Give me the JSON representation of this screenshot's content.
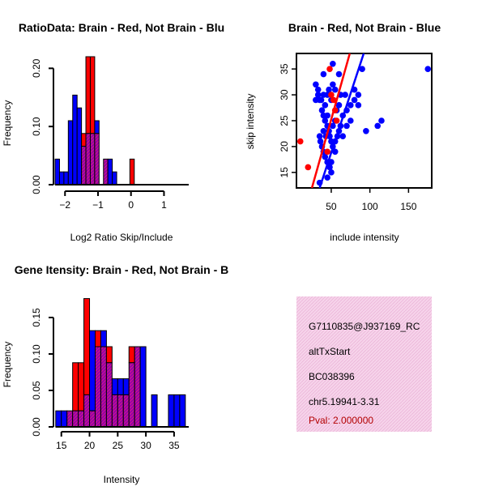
{
  "colors": {
    "red": "#ff0000",
    "blue": "#0000ff",
    "overlap": "#9400a8",
    "info_bg": "#f6d3ea",
    "pval_text": "#b30000"
  },
  "chart_data": [
    {
      "id": "ratio_hist",
      "type": "bar",
      "title": "RatioData: Brain - Red, Not Brain - Blu",
      "xlabel": "Log2 Ratio Skip/Include",
      "ylabel": "Frequency",
      "xlim": [
        -2.35,
        1.75
      ],
      "ylim": [
        0,
        0.22
      ],
      "xticks": [
        -2,
        -1,
        0,
        1
      ],
      "xtick_labels": [
        "−2",
        "−1",
        "0",
        "1"
      ],
      "yticks": [
        0.0,
        0.1,
        0.2
      ],
      "ytick_labels": [
        "0.00",
        "0.10",
        "0.20"
      ],
      "bin_start": -2.3,
      "bin_width": 0.1333,
      "series": [
        {
          "name": "Not Brain",
          "color": "blue",
          "values": [
            0.044,
            0.022,
            0.022,
            0.11,
            0.154,
            0.132,
            0.066,
            0.088,
            0.088,
            0.11,
            0.0,
            0.044,
            0.044,
            0.022,
            0,
            0,
            0,
            0,
            0,
            0,
            0,
            0,
            0,
            0,
            0,
            0,
            0,
            0,
            0,
            0
          ]
        },
        {
          "name": "Brain",
          "color": "red",
          "values": [
            0,
            0,
            0,
            0,
            0,
            0,
            0.088,
            0.22,
            0.22,
            0.088,
            0,
            0.044,
            0,
            0,
            0,
            0,
            0,
            0.044,
            0,
            0,
            0,
            0,
            0,
            0,
            0,
            0,
            0,
            0,
            0,
            0
          ]
        }
      ]
    },
    {
      "id": "scatter",
      "type": "scatter",
      "title": "Brain - Red, Not Brain - Blue",
      "xlabel": "include intensity",
      "ylabel": "skip intensity",
      "xlim": [
        5,
        180
      ],
      "ylim": [
        12,
        38
      ],
      "xticks": [
        50,
        100,
        150
      ],
      "xtick_labels": [
        "50",
        "100",
        "150"
      ],
      "yticks": [
        15,
        20,
        25,
        30,
        35
      ],
      "ytick_labels": [
        "15",
        "20",
        "25",
        "30",
        "35"
      ],
      "series": [
        {
          "name": "Not Brain",
          "color": "blue",
          "points": [
            [
              30,
              29
            ],
            [
              35,
              29
            ],
            [
              33,
              30
            ],
            [
              37,
              29
            ],
            [
              40,
              30
            ],
            [
              42,
              28
            ],
            [
              45,
              30
            ],
            [
              47,
              31
            ],
            [
              50,
              29
            ],
            [
              52,
              32
            ],
            [
              55,
              31
            ],
            [
              38,
              27
            ],
            [
              40,
              26
            ],
            [
              42,
              25
            ],
            [
              45,
              24
            ],
            [
              47,
              23
            ],
            [
              48,
              22
            ],
            [
              50,
              21
            ],
            [
              52,
              20
            ],
            [
              55,
              19
            ],
            [
              58,
              22
            ],
            [
              60,
              23
            ],
            [
              62,
              24
            ],
            [
              65,
              26
            ],
            [
              70,
              27
            ],
            [
              75,
              28
            ],
            [
              80,
              29
            ],
            [
              85,
              30
            ],
            [
              90,
              35
            ],
            [
              95,
              23
            ],
            [
              110,
              24
            ],
            [
              115,
              25
            ],
            [
              175,
              35
            ],
            [
              35,
              22
            ],
            [
              36,
              21
            ],
            [
              38,
              20
            ],
            [
              40,
              19
            ],
            [
              42,
              18
            ],
            [
              45,
              17
            ],
            [
              48,
              16
            ],
            [
              50,
              15
            ],
            [
              40,
              23
            ],
            [
              43,
              22
            ],
            [
              55,
              25
            ],
            [
              57,
              27
            ],
            [
              60,
              28
            ],
            [
              62,
              30
            ],
            [
              30,
              32
            ],
            [
              33,
              31
            ],
            [
              45,
              26
            ],
            [
              52,
              24
            ],
            [
              35,
              13
            ],
            [
              45,
              14
            ],
            [
              50,
              17
            ],
            [
              55,
              21
            ],
            [
              65,
              22
            ],
            [
              70,
              24
            ],
            [
              75,
              25
            ],
            [
              80,
              31
            ],
            [
              85,
              28
            ],
            [
              52,
              36
            ],
            [
              60,
              34
            ],
            [
              68,
              30
            ],
            [
              40,
              34
            ]
          ]
        },
        {
          "name": "Brain",
          "color": "red",
          "points": [
            [
              10,
              21
            ],
            [
              20,
              16
            ],
            [
              45,
              19
            ],
            [
              48,
              35
            ],
            [
              50,
              30
            ],
            [
              53,
              29
            ],
            [
              55,
              27
            ],
            [
              57,
              25
            ]
          ]
        }
      ],
      "fit_lines": [
        {
          "name": "Not Brain fit",
          "color": "blue",
          "x": [
            35,
            92
          ],
          "y": [
            12,
            38
          ]
        },
        {
          "name": "Brain fit",
          "color": "red",
          "x": [
            25,
            74
          ],
          "y": [
            12,
            38
          ]
        }
      ]
    },
    {
      "id": "intensity_hist",
      "type": "bar",
      "title": "Gene Itensity: Brain - Red, Not Brain - B",
      "xlabel": "Intensity",
      "ylabel": "Frequency",
      "xlim": [
        13.6,
        37.6
      ],
      "ylim": [
        0,
        0.18
      ],
      "xticks": [
        15,
        20,
        25,
        30,
        35
      ],
      "xtick_labels": [
        "15",
        "20",
        "25",
        "30",
        "35"
      ],
      "yticks": [
        0.0,
        0.05,
        0.1,
        0.15
      ],
      "ytick_labels": [
        "0.00",
        "0.05",
        "0.10",
        "0.15"
      ],
      "bin_start": 14,
      "bin_width": 1.0,
      "series": [
        {
          "name": "Not Brain",
          "color": "blue",
          "values": [
            0.022,
            0.022,
            0.022,
            0.022,
            0.022,
            0.044,
            0.132,
            0.11,
            0.132,
            0.088,
            0.066,
            0.066,
            0.066,
            0.088,
            0.11,
            0.11,
            0.0,
            0.044,
            0.0,
            0.0,
            0.044,
            0.044,
            0.044,
            0.044
          ]
        },
        {
          "name": "Brain",
          "color": "red",
          "values": [
            0,
            0,
            0.022,
            0.088,
            0.088,
            0.176,
            0.022,
            0.132,
            0.11,
            0.11,
            0.044,
            0.044,
            0.044,
            0.11,
            0.11,
            0,
            0,
            0,
            0,
            0,
            0,
            0,
            0,
            0
          ]
        }
      ]
    }
  ],
  "info_box": {
    "lines": [
      "G7110835@J937169_RC",
      "altTxStart",
      "BC038396",
      "chr5.19941-3.31"
    ],
    "pval": "Pval: 2.000000"
  }
}
